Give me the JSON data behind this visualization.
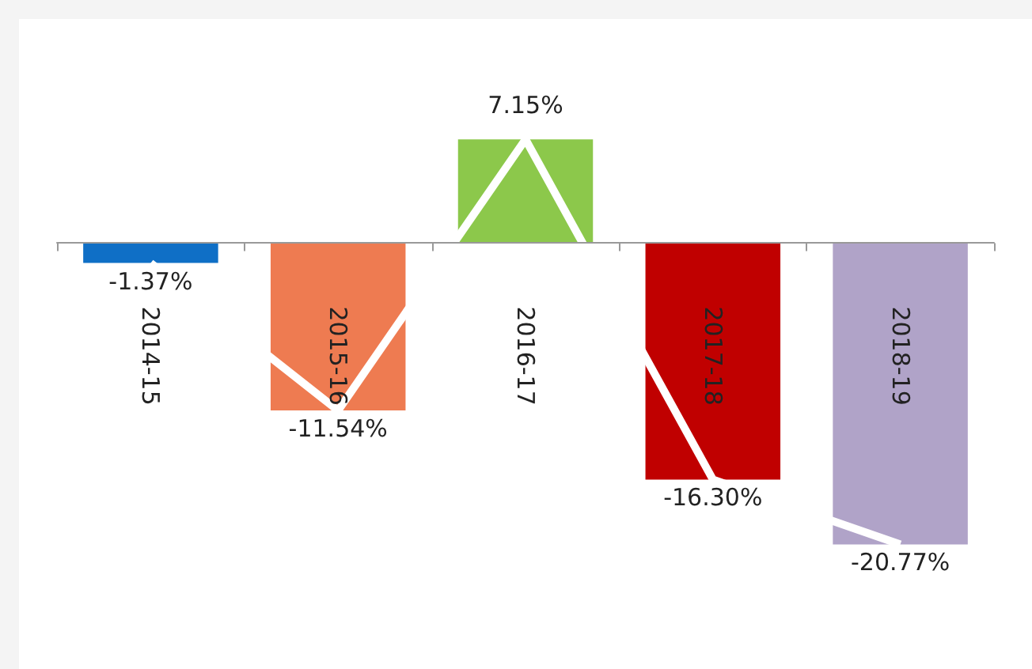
{
  "chart_data": {
    "type": "bar",
    "categories": [
      "2014-15",
      "2015-16",
      "2016-17",
      "2017-18",
      "2018-19"
    ],
    "series": [
      {
        "colors": [
          "#0f6fc6",
          "#ee7b51",
          "#8cc84b",
          "#c00000",
          "#b0a3c8"
        ],
        "values": [
          -1.37,
          -11.54,
          7.15,
          -16.3,
          -20.77
        ],
        "value_labels": [
          "-1.37%",
          "-11.54%",
          "7.15%",
          "-16.30%",
          "-20.77%"
        ]
      },
      {
        "type": "line",
        "color": "#ffffff",
        "values": [
          -1.37,
          -11.54,
          7.15,
          -16.3,
          -20.77
        ]
      }
    ],
    "marker": "none"
  }
}
